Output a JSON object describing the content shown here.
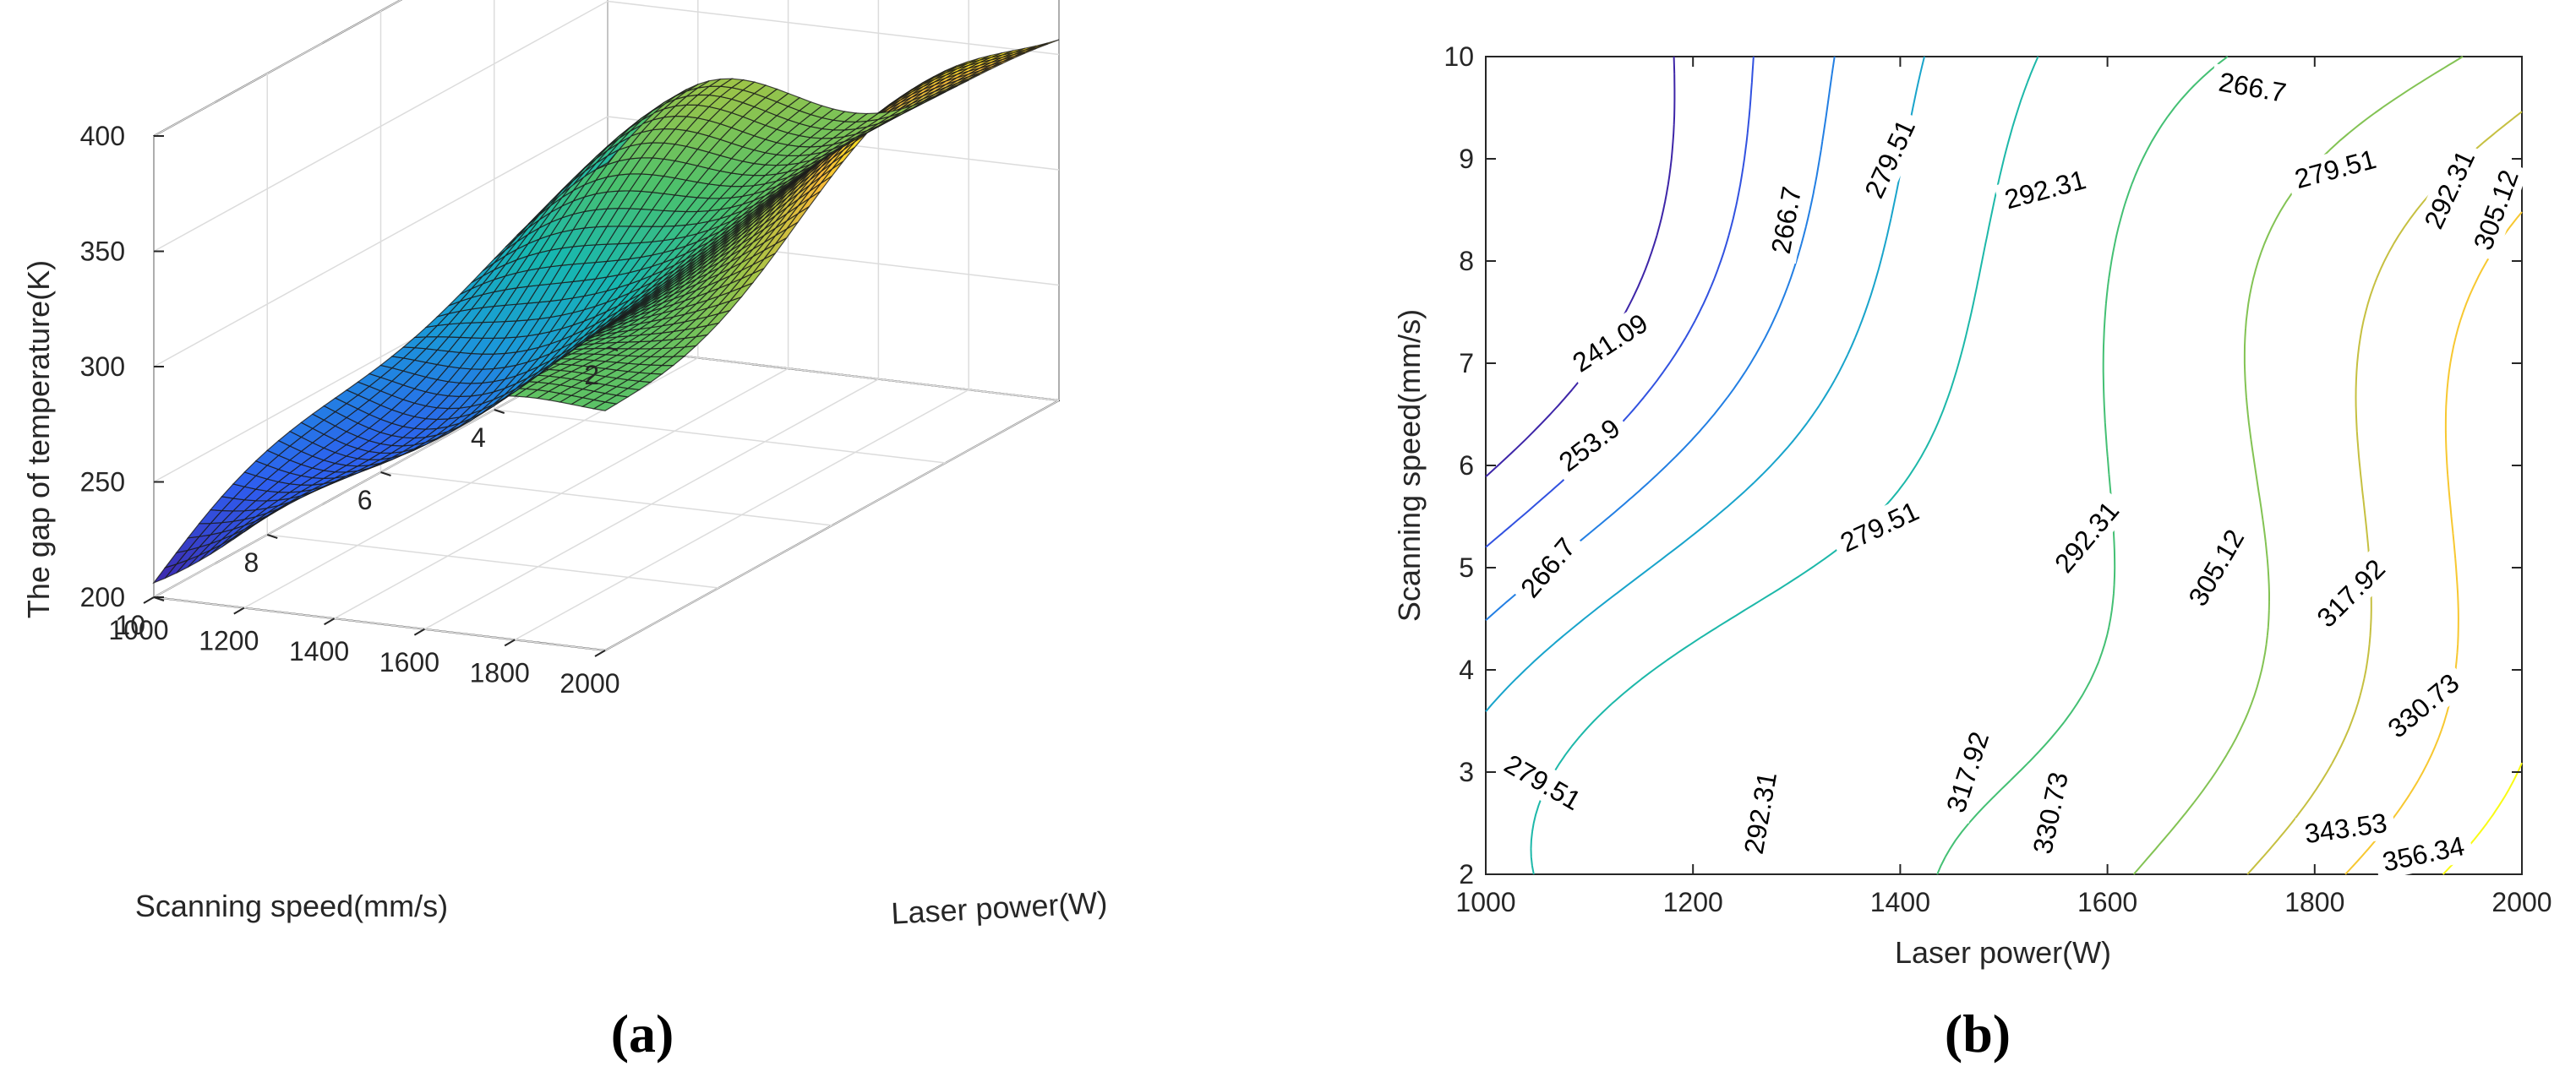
{
  "chart_data": [
    {
      "type": "surface",
      "panel_label": "(a)",
      "xlabel": "Laser power(W)",
      "ylabel": "Scanning speed(mm/s)",
      "zlabel": "The gap of temperature(K)",
      "x_ticks": [
        "1000",
        "1200",
        "1400",
        "1600",
        "1800",
        "2000"
      ],
      "y_ticks": [
        "2",
        "4",
        "6",
        "8",
        "10"
      ],
      "z_ticks": [
        "200",
        "250",
        "300",
        "350",
        "400"
      ],
      "xlim": [
        1000,
        2000
      ],
      "ylim": [
        2,
        10
      ],
      "zlim": [
        200,
        400
      ],
      "colormap": [
        "#3e26a8",
        "#2e5ef0",
        "#1a9ad8",
        "#17b7b0",
        "#4ac16d",
        "#a0c447",
        "#f6ba39",
        "#f9fb15"
      ]
    },
    {
      "type": "contour",
      "panel_label": "(b)",
      "xlabel": "Laser power(W)",
      "ylabel": "Scanning speed(mm/s)",
      "x_ticks": [
        "1000",
        "1200",
        "1400",
        "1600",
        "1800",
        "2000"
      ],
      "y_ticks": [
        "2",
        "3",
        "4",
        "5",
        "6",
        "7",
        "8",
        "9",
        "10"
      ],
      "xlim": [
        1000,
        2000
      ],
      "ylim": [
        2,
        10
      ],
      "levels": [
        241.09,
        253.9,
        266.7,
        279.51,
        292.31,
        305.12,
        317.92,
        330.73,
        343.53,
        356.34
      ],
      "labels": [
        {
          "text": "241.09",
          "x": 1120,
          "y": 7.2,
          "angle": -33
        },
        {
          "text": "253.9",
          "x": 1100,
          "y": 6.2,
          "angle": -37
        },
        {
          "text": "266.7",
          "x": 1060,
          "y": 5.0,
          "angle": -50
        },
        {
          "text": "266.7",
          "x": 1740,
          "y": 9.7,
          "angle": 10
        },
        {
          "text": "266.7",
          "x": 1290,
          "y": 8.4,
          "angle": -80
        },
        {
          "text": "279.51",
          "x": 1390,
          "y": 9.0,
          "angle": -65
        },
        {
          "text": "279.51",
          "x": 1820,
          "y": 8.9,
          "angle": -15
        },
        {
          "text": "279.51",
          "x": 1380,
          "y": 5.4,
          "angle": -25
        },
        {
          "text": "279.51",
          "x": 1055,
          "y": 2.9,
          "angle": 30
        },
        {
          "text": "292.31",
          "x": 1540,
          "y": 8.7,
          "angle": -15
        },
        {
          "text": "292.31",
          "x": 1930,
          "y": 8.7,
          "angle": -65
        },
        {
          "text": "292.31",
          "x": 1580,
          "y": 5.3,
          "angle": -50
        },
        {
          "text": "292.31",
          "x": 1265,
          "y": 2.6,
          "angle": -80
        },
        {
          "text": "305.12",
          "x": 1975,
          "y": 8.5,
          "angle": -70
        },
        {
          "text": "305.12",
          "x": 1705,
          "y": 5.0,
          "angle": -60
        },
        {
          "text": "317.92",
          "x": 1835,
          "y": 4.75,
          "angle": -45
        },
        {
          "text": "317.92",
          "x": 1465,
          "y": 3.0,
          "angle": -72
        },
        {
          "text": "330.73",
          "x": 1545,
          "y": 2.6,
          "angle": -78
        },
        {
          "text": "330.73",
          "x": 1905,
          "y": 3.65,
          "angle": -40
        },
        {
          "text": "343.53",
          "x": 1830,
          "y": 2.45,
          "angle": -8
        },
        {
          "text": "356.34",
          "x": 1905,
          "y": 2.2,
          "angle": -12
        }
      ]
    }
  ]
}
